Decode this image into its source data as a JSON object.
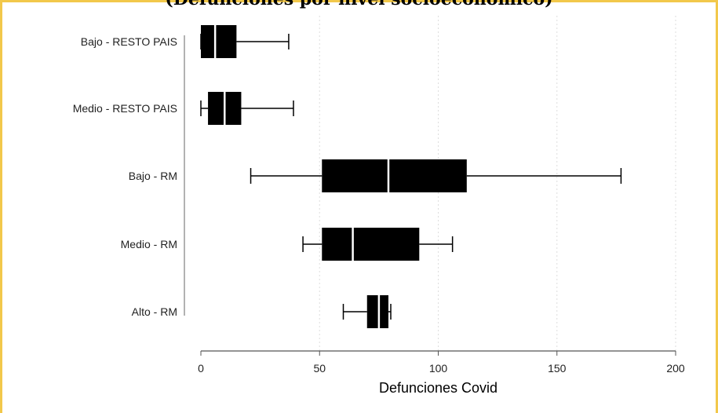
{
  "title": "(Defunciones por nivel socioeconómico)",
  "colors": {
    "frame": "#f2c84b",
    "box_fill": "#000000",
    "axis": "#999999",
    "grid": "#dddddd",
    "median": "#ffffff"
  },
  "chart_data": {
    "type": "boxplot",
    "orientation": "horizontal",
    "xlabel": "Defunciones Covid",
    "ylabel": "",
    "xlim": [
      0,
      200
    ],
    "xticks": [
      0,
      50,
      100,
      150,
      200
    ],
    "grid": "vertical dotted",
    "categories": [
      "Bajo - RESTO PAIS",
      "Medio - RESTO PAIS",
      "Bajo - RM",
      "Medio - RM",
      "Alto - RM"
    ],
    "boxes": [
      {
        "label": "Bajo - RESTO PAIS",
        "min": 0,
        "q1": 0,
        "median": 6,
        "q3": 15,
        "max": 37
      },
      {
        "label": "Medio - RESTO PAIS",
        "min": 0,
        "q1": 3,
        "median": 10,
        "q3": 17,
        "max": 39
      },
      {
        "label": "Bajo - RM",
        "min": 21,
        "q1": 51,
        "median": 79,
        "q3": 112,
        "max": 177
      },
      {
        "label": "Medio - RM",
        "min": 43,
        "q1": 51,
        "median": 64,
        "q3": 92,
        "max": 106
      },
      {
        "label": "Alto - RM",
        "min": 60,
        "q1": 70,
        "median": 75,
        "q3": 79,
        "max": 80
      }
    ]
  }
}
